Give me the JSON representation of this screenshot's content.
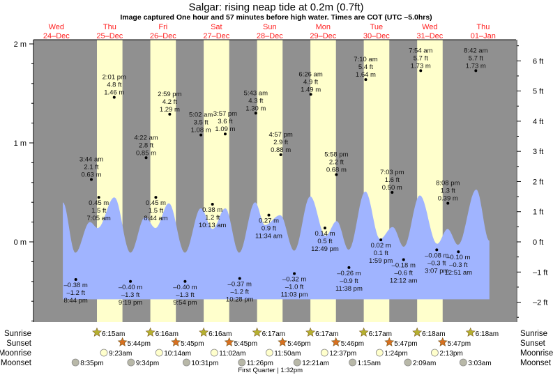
{
  "chart_data": {
    "type": "area",
    "title": "Salgar: rising  neap tide at 0.2m (0.7ft)",
    "subtitle": "Image captured One hour and 57 minutes before high water. Times are COT (UTC –5.0hrs)",
    "x_unit": "hours since Wed 24-Dec 00:00",
    "xlim": [
      1.7,
      218.8
    ],
    "ylim_m": [
      -0.81,
      2.04
    ],
    "left_axis": {
      "unit": "m",
      "ticks": [
        {
          "v": 2,
          "label": "2 m"
        },
        {
          "v": 1,
          "label": "1 m"
        },
        {
          "v": 0,
          "label": "0 m"
        }
      ]
    },
    "right_axis": {
      "unit": "ft",
      "ticks": [
        {
          "v": 6,
          "label": "6 ft"
        },
        {
          "v": 5,
          "label": "5 ft"
        },
        {
          "v": 4,
          "label": "4 ft"
        },
        {
          "v": 3,
          "label": "3 ft"
        },
        {
          "v": 2,
          "label": "2 ft"
        },
        {
          "v": 1,
          "label": "1 ft"
        },
        {
          "v": 0,
          "label": "0 ft"
        },
        {
          "v": -1,
          "label": "–1 ft"
        },
        {
          "v": -2,
          "label": "–2 ft"
        }
      ]
    },
    "days": [
      {
        "dow": "Wed",
        "date": "24–Dec"
      },
      {
        "dow": "Thu",
        "date": "25–Dec"
      },
      {
        "dow": "Fri",
        "date": "26–Dec"
      },
      {
        "dow": "Sat",
        "date": "27–Dec"
      },
      {
        "dow": "Sun",
        "date": "28–Dec"
      },
      {
        "dow": "Mon",
        "date": "29–Dec"
      },
      {
        "dow": "Tue",
        "date": "30–Dec"
      },
      {
        "dow": "Wed",
        "date": "31–Dec"
      },
      {
        "dow": "Thu",
        "date": "01–Jan"
      }
    ],
    "daylight_hours": [
      [
        30.25,
        41.73
      ],
      [
        54.27,
        65.75
      ],
      [
        78.27,
        89.75
      ],
      [
        102.28,
        113.77
      ],
      [
        126.28,
        137.77
      ],
      [
        150.28,
        161.78
      ],
      [
        174.3,
        185.78
      ]
    ],
    "curve": [
      [
        14.9,
        0.4
      ],
      [
        20.5,
        -0.11
      ],
      [
        27.1,
        0.2
      ],
      [
        30.6,
        0.14
      ],
      [
        38.1,
        0.45
      ],
      [
        45.3,
        -0.11
      ],
      [
        51.9,
        0.25
      ],
      [
        56.6,
        0.14
      ],
      [
        62.6,
        0.39
      ],
      [
        69.8,
        -0.11
      ],
      [
        77.0,
        0.34
      ],
      [
        82.3,
        0.13
      ],
      [
        88.0,
        0.34
      ],
      [
        94.2,
        -0.11
      ],
      [
        101.4,
        0.4
      ],
      [
        105.8,
        0.17
      ],
      [
        112.7,
        0.27
      ],
      [
        119.0,
        -0.09
      ],
      [
        126.2,
        0.46
      ],
      [
        133.1,
        0.06
      ],
      [
        138.1,
        0.21
      ],
      [
        143.5,
        -0.08
      ],
      [
        151.0,
        0.51
      ],
      [
        157.6,
        0.03
      ],
      [
        163.3,
        0.15
      ],
      [
        168.3,
        -0.05
      ],
      [
        175.5,
        0.47
      ],
      [
        183.3,
        -0.02
      ],
      [
        188.0,
        0.13
      ],
      [
        192.7,
        -0.03
      ],
      [
        200.9,
        0.53
      ],
      [
        206.8,
        0.01
      ]
    ],
    "curve_floor_m": -0.58,
    "tides": [
      {
        "h": 20.73,
        "type": "low",
        "time": "8:44 pm",
        "m": "–0.38 m",
        "ft": "–1.2 ft",
        "v": -0.38
      },
      {
        "h": 27.73,
        "type": "high",
        "time": "3:44 am",
        "m": "0.63 m",
        "ft": "2.1 ft",
        "v": 0.63
      },
      {
        "h": 31.08,
        "type": "low",
        "time": "7:05 am",
        "m": "0.45 m",
        "ft": "1.5 ft",
        "v": 0.45
      },
      {
        "h": 38.02,
        "type": "high",
        "time": "2:01 pm",
        "m": "1.46 m",
        "ft": "4.8 ft",
        "v": 1.46
      },
      {
        "h": 45.32,
        "type": "low",
        "time": "9:19 pm",
        "m": "–0.40 m",
        "ft": "–1.3 ft",
        "v": -0.4
      },
      {
        "h": 52.37,
        "type": "high",
        "time": "4:22 am",
        "m": "0.85 m",
        "ft": "2.8 ft",
        "v": 0.85
      },
      {
        "h": 56.73,
        "type": "low",
        "time": "8:44 am",
        "m": "0.45 m",
        "ft": "1.5 ft",
        "v": 0.45
      },
      {
        "h": 62.98,
        "type": "high",
        "time": "2:59 pm",
        "m": "1.29 m",
        "ft": "4.2 ft",
        "v": 1.29
      },
      {
        "h": 69.9,
        "type": "low",
        "time": "9:54 pm",
        "m": "–0.40 m",
        "ft": "–1.3 ft",
        "v": -0.4
      },
      {
        "h": 77.03,
        "type": "high",
        "time": "5:02 am",
        "m": "1.08 m",
        "ft": "3.5 ft",
        "v": 1.08
      },
      {
        "h": 82.22,
        "type": "low",
        "time": "10:13 am",
        "m": "0.38 m",
        "ft": "1.2 ft",
        "v": 0.38
      },
      {
        "h": 87.95,
        "type": "high",
        "time": "3:57 pm",
        "m": "1.09 m",
        "ft": "3.6 ft",
        "v": 1.09
      },
      {
        "h": 94.47,
        "type": "low",
        "time": "10:28 pm",
        "m": "–0.37 m",
        "ft": "–1.2 ft",
        "v": -0.37
      },
      {
        "h": 101.72,
        "type": "high",
        "time": "5:43 am",
        "m": "1.30 m",
        "ft": "4.3 ft",
        "v": 1.3
      },
      {
        "h": 107.57,
        "type": "low",
        "time": "11:34 am",
        "m": "0.27 m",
        "ft": "0.9 ft",
        "v": 0.27
      },
      {
        "h": 112.95,
        "type": "high",
        "time": "4:57 pm",
        "m": "0.88 m",
        "ft": "2.9 ft",
        "v": 0.88
      },
      {
        "h": 119.05,
        "type": "low",
        "time": "11:03 pm",
        "m": "–0.32 m",
        "ft": "–1.0 ft",
        "v": -0.32
      },
      {
        "h": 126.43,
        "type": "high",
        "time": "6:26 am",
        "m": "1.49 m",
        "ft": "4.9 ft",
        "v": 1.49
      },
      {
        "h": 132.82,
        "type": "low",
        "time": "12:49 pm",
        "m": "0.14 m",
        "ft": "0.5 ft",
        "v": 0.14
      },
      {
        "h": 137.97,
        "type": "high",
        "time": "5:58 pm",
        "m": "0.68 m",
        "ft": "2.2 ft",
        "v": 0.68
      },
      {
        "h": 143.63,
        "type": "low",
        "time": "11:38 pm",
        "m": "–0.26 m",
        "ft": "–0.9 ft",
        "v": -0.26
      },
      {
        "h": 151.17,
        "type": "high",
        "time": "7:10 am",
        "m": "1.64 m",
        "ft": "5.4 ft",
        "v": 1.64
      },
      {
        "h": 157.98,
        "type": "low",
        "time": "1:59 pm",
        "m": "0.02 m",
        "ft": "0.1 ft",
        "v": 0.02
      },
      {
        "h": 163.05,
        "type": "high",
        "time": "7:03 pm",
        "m": "0.50 m",
        "ft": "1.6 ft",
        "v": 0.5
      },
      {
        "h": 168.2,
        "type": "low",
        "time": "12:12 am",
        "m": "–0.18 m",
        "ft": "–0.6 ft",
        "v": -0.18
      },
      {
        "h": 175.9,
        "type": "high",
        "time": "7:54 am",
        "m": "1.73 m",
        "ft": "5.7 ft",
        "v": 1.73
      },
      {
        "h": 183.12,
        "type": "low",
        "time": "3:07 pm",
        "m": "–0.08 m",
        "ft": "–0.3 ft",
        "v": -0.08
      },
      {
        "h": 188.13,
        "type": "high",
        "time": "8:08 pm",
        "m": "0.39 m",
        "ft": "1.3 ft",
        "v": 0.39
      },
      {
        "h": 192.85,
        "type": "low",
        "time": "12:51 am",
        "m": "–0.10 m",
        "ft": "–0.3 ft",
        "v": -0.1
      },
      {
        "h": 200.7,
        "type": "high",
        "time": "8:42 am",
        "m": "1.73 m",
        "ft": "5.7 ft",
        "v": 1.73
      }
    ],
    "colors": {
      "night": "#909090",
      "day": "#ffffcc",
      "water": "#a0b4ff",
      "day_label": "#ff2020",
      "sunrise": "#b5b030",
      "sunset": "#d87020",
      "moonrise": "#ffffcc",
      "moonset": "#b8b8a8"
    }
  },
  "astro": {
    "rows": [
      {
        "key": "sunrise",
        "label": "Sunrise",
        "events": [
          [
            30.25,
            "6:15am"
          ],
          [
            54.27,
            "6:16am"
          ],
          [
            78.27,
            "6:16am"
          ],
          [
            102.28,
            "6:17am"
          ],
          [
            126.28,
            "6:17am"
          ],
          [
            150.28,
            "6:17am"
          ],
          [
            174.3,
            "6:18am"
          ],
          [
            198.3,
            "6:18am"
          ]
        ]
      },
      {
        "key": "sunset",
        "label": "Sunset",
        "events": [
          [
            41.73,
            "5:44pm"
          ],
          [
            65.75,
            "5:45pm"
          ],
          [
            89.75,
            "5:45pm"
          ],
          [
            113.77,
            "5:46pm"
          ],
          [
            137.77,
            "5:46pm"
          ],
          [
            161.78,
            "5:47pm"
          ],
          [
            185.78,
            "5:47pm"
          ]
        ]
      },
      {
        "key": "moonrise",
        "label": "Moonrise",
        "events": [
          [
            33.38,
            "9:23am"
          ],
          [
            58.23,
            "10:14am"
          ],
          [
            83.03,
            "11:02am"
          ],
          [
            107.83,
            "11:50am"
          ],
          [
            132.62,
            "12:37pm"
          ],
          [
            157.4,
            "1:24pm"
          ],
          [
            182.22,
            "2:13pm"
          ]
        ]
      },
      {
        "key": "moonset",
        "label": "Moonset",
        "events": [
          [
            20.58,
            "8:35pm"
          ],
          [
            45.57,
            "9:34pm"
          ],
          [
            70.52,
            "10:31pm"
          ],
          [
            95.43,
            "11:26pm"
          ],
          [
            120.35,
            "12:21am"
          ],
          [
            145.25,
            "1:15am"
          ],
          [
            170.15,
            "2:09am"
          ],
          [
            195.05,
            "3:03am"
          ]
        ]
      }
    ],
    "moon_phase": {
      "h": 109.53,
      "text": "First Quarter | 1:32pm"
    }
  }
}
